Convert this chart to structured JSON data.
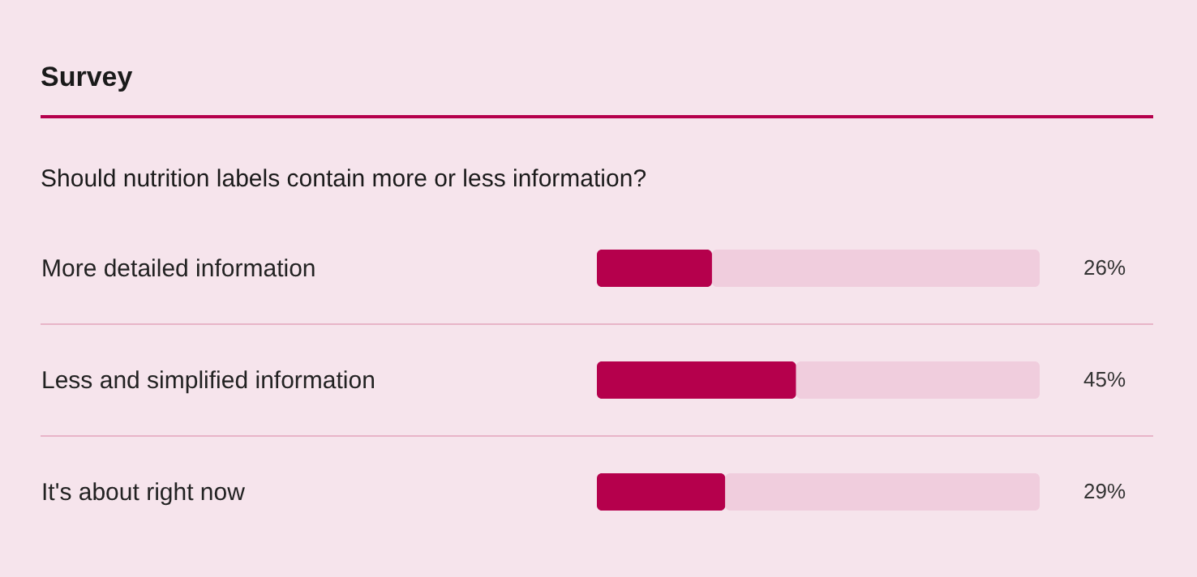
{
  "chart_data": {
    "type": "bar",
    "orientation": "horizontal",
    "stacked": true,
    "title": "Survey",
    "subtitle": "Should nutrition labels contain more or less information?",
    "categories": [
      "More detailed information",
      "Less and simplified information",
      "It's about right now"
    ],
    "series": [
      {
        "color": "#b5004c",
        "values": [
          26,
          45,
          29
        ],
        "value_labels": [
          "26%",
          "45%",
          "29%"
        ]
      },
      {
        "color": "#f0cddd",
        "values": [
          74,
          55,
          71
        ]
      }
    ],
    "xlim": [
      0,
      100
    ],
    "tick_labels": "y",
    "grid": "y"
  }
}
